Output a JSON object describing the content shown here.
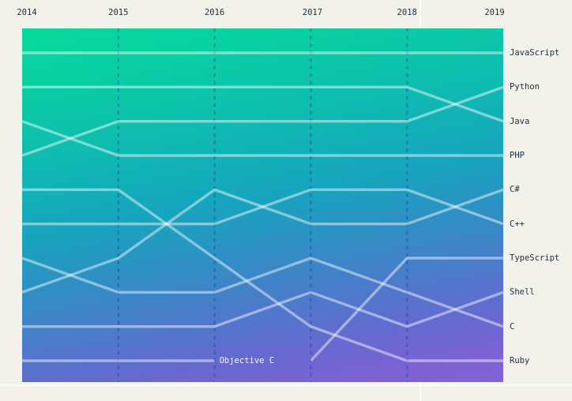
{
  "chart_data": {
    "type": "bump",
    "x": [
      2014,
      2015,
      2016,
      2017,
      2018,
      2019
    ],
    "rank_range": [
      1,
      10
    ],
    "grid": "dashed-vertical-per-year",
    "legend_position": "right",
    "series": [
      {
        "name": "JavaScript",
        "ranks": [
          1,
          1,
          1,
          1,
          1,
          1
        ],
        "label_position": "right"
      },
      {
        "name": "Python",
        "ranks": [
          4,
          3,
          3,
          3,
          3,
          2
        ],
        "label_position": "right"
      },
      {
        "name": "Java",
        "ranks": [
          2,
          2,
          2,
          2,
          2,
          3
        ],
        "label_position": "right"
      },
      {
        "name": "PHP",
        "ranks": [
          3,
          4,
          4,
          4,
          4,
          4
        ],
        "label_position": "right"
      },
      {
        "name": "C#",
        "ranks": [
          8,
          7,
          5,
          6,
          6,
          5
        ],
        "label_position": "right"
      },
      {
        "name": "C++",
        "ranks": [
          6,
          6,
          6,
          5,
          5,
          6
        ],
        "label_position": "right"
      },
      {
        "name": "TypeScript",
        "ranks": [
          null,
          null,
          null,
          10,
          7,
          7
        ],
        "label_position": "right"
      },
      {
        "name": "Shell",
        "ranks": [
          9,
          9,
          9,
          8,
          9,
          8
        ],
        "label_position": "right"
      },
      {
        "name": "C",
        "ranks": [
          7,
          8,
          8,
          7,
          8,
          9
        ],
        "label_position": "right"
      },
      {
        "name": "Ruby",
        "ranks": [
          5,
          5,
          7,
          9,
          10,
          10
        ],
        "label_position": "right"
      },
      {
        "name": "Objective C",
        "ranks": [
          10,
          10,
          10,
          null,
          null,
          null
        ],
        "label_position": "inline-end"
      }
    ]
  },
  "colors": {
    "page_background": "#F2F2EA",
    "gradient_top": "#06DA9B",
    "gradient_middle": "#17A4BE",
    "gradient_bottom": "#8660D6",
    "series_line": "rgba(255,255,255,0.46)",
    "year_gridline": "rgba(26,60,150,0.38)",
    "axis_text": "#1E2D3A",
    "inline_label_text": "#FFFFFF"
  }
}
